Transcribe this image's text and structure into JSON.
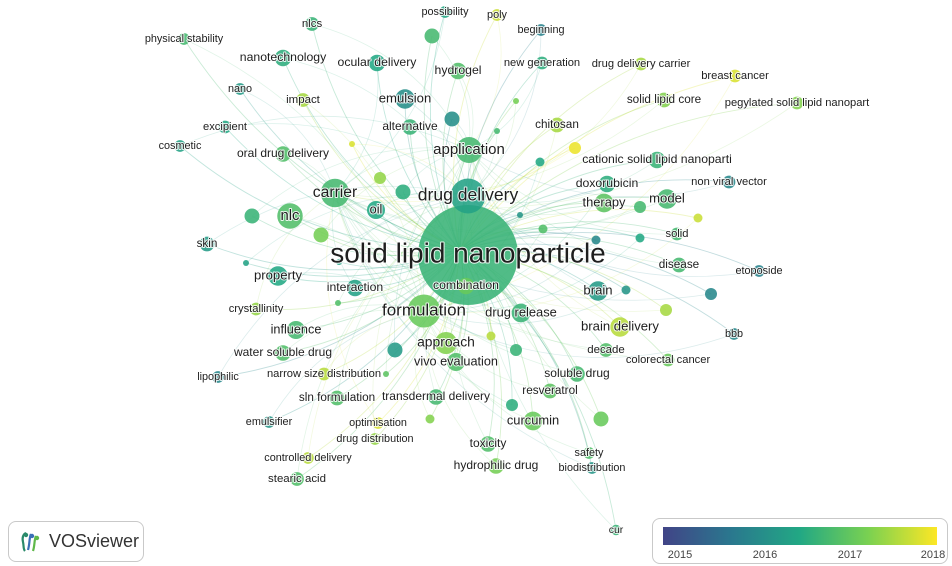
{
  "colors": {
    "scale": [
      "#414487",
      "#2a788e",
      "#22a884",
      "#7ad151",
      "#fde725"
    ],
    "link": "#8fcfc0"
  },
  "logo": {
    "text": "VOSviewer",
    "icon": "vosviewer-logo-icon"
  },
  "legend": {
    "ticks": [
      "2015",
      "2016",
      "2017",
      "2018"
    ]
  },
  "terms": [
    {
      "label": "solid lipid nanoparticle",
      "weight": 100,
      "year": 2016.7
    },
    {
      "label": "drug delivery",
      "weight": 45,
      "year": 2016.4
    },
    {
      "label": "formulation",
      "weight": 40,
      "year": 2017.1
    },
    {
      "label": "carrier",
      "weight": 30,
      "year": 2016.8
    },
    {
      "label": "application",
      "weight": 25,
      "year": 2016.8
    },
    {
      "label": "nlc",
      "weight": 24,
      "year": 2016.9
    },
    {
      "label": "approach",
      "weight": 18,
      "year": 2017.3
    },
    {
      "label": "brain",
      "weight": 14,
      "year": 2016.3
    },
    {
      "label": "emulsion",
      "weight": 14,
      "year": 2016.1
    },
    {
      "label": "property",
      "weight": 14,
      "year": 2016.5
    },
    {
      "label": "model",
      "weight": 14,
      "year": 2016.8
    },
    {
      "label": "brain delivery",
      "weight": 14,
      "year": 2017.6
    },
    {
      "label": "therapy",
      "weight": 13,
      "year": 2017.0
    },
    {
      "label": "curcumin",
      "weight": 13,
      "year": 2017.1
    },
    {
      "label": "drug release",
      "weight": 13,
      "year": 2016.7
    },
    {
      "label": "vivo evaluation",
      "weight": 12,
      "year": 2016.9
    },
    {
      "label": "oil",
      "weight": 12,
      "year": 2016.5
    },
    {
      "label": "influence",
      "weight": 12,
      "year": 2016.8
    },
    {
      "label": "interaction",
      "weight": 10,
      "year": 2016.4
    },
    {
      "label": "combination",
      "weight": 10,
      "year": 2017.1
    },
    {
      "label": "cationic solid lipid nanoparti",
      "weight": 10,
      "year": 2016.7
    },
    {
      "label": "doxorubicin",
      "weight": 10,
      "year": 2016.6
    },
    {
      "label": "ocular delivery",
      "weight": 10,
      "year": 2016.5
    },
    {
      "label": "hydrogel",
      "weight": 10,
      "year": 2016.9
    },
    {
      "label": "nanotechnology",
      "weight": 10,
      "year": 2016.6
    },
    {
      "label": "water soluble drug",
      "weight": 9,
      "year": 2016.9
    },
    {
      "label": "soluble drug",
      "weight": 9,
      "year": 2016.8
    },
    {
      "label": "transdermal delivery",
      "weight": 9,
      "year": 2016.8
    },
    {
      "label": "toxicity",
      "weight": 9,
      "year": 2016.9
    },
    {
      "label": "hydrophilic drug",
      "weight": 9,
      "year": 2017.2
    },
    {
      "label": "oral drug delivery",
      "weight": 9,
      "year": 2016.9
    },
    {
      "label": "alternative",
      "weight": 9,
      "year": 2016.7
    },
    {
      "label": "sln formulation",
      "weight": 8,
      "year": 2016.9
    },
    {
      "label": "resveratrol",
      "weight": 8,
      "year": 2017.0
    },
    {
      "label": "solid lipid core",
      "weight": 8,
      "year": 2017.3
    },
    {
      "label": "disease",
      "weight": 8,
      "year": 2016.8
    },
    {
      "label": "skin",
      "weight": 8,
      "year": 2016.3
    },
    {
      "label": "chitosan",
      "weight": 8,
      "year": 2017.5
    },
    {
      "label": "decade",
      "weight": 7,
      "year": 2016.9
    },
    {
      "label": "nlcs",
      "weight": 7,
      "year": 2016.7
    },
    {
      "label": "stearic acid",
      "weight": 7,
      "year": 2016.9
    },
    {
      "label": "impact",
      "weight": 7,
      "year": 2017.5
    },
    {
      "label": "colorectal cancer",
      "weight": 6,
      "year": 2017.1
    },
    {
      "label": "solid",
      "weight": 6,
      "year": 2016.8
    },
    {
      "label": "excipient",
      "weight": 6,
      "year": 2016.5
    },
    {
      "label": "narrow size distribution",
      "weight": 6,
      "year": 2017.6
    },
    {
      "label": "crystallinity",
      "weight": 6,
      "year": 2017.4
    },
    {
      "label": "new generation",
      "weight": 6,
      "year": 2016.6
    },
    {
      "label": "drug delivery carrier",
      "weight": 6,
      "year": 2017.5
    },
    {
      "label": "breast cancer",
      "weight": 6,
      "year": 2017.8
    },
    {
      "label": "pegylated solid lipid nanopart",
      "weight": 6,
      "year": 2017.3
    },
    {
      "label": "non viral vector",
      "weight": 6,
      "year": 2016.0
    },
    {
      "label": "etoposide",
      "weight": 5,
      "year": 2015.9
    },
    {
      "label": "bbb",
      "weight": 5,
      "year": 2016.0
    },
    {
      "label": "possibility",
      "weight": 5,
      "year": 2016.5
    },
    {
      "label": "poly",
      "weight": 5,
      "year": 2017.7
    },
    {
      "label": "beginning",
      "weight": 5,
      "year": 2015.9
    },
    {
      "label": "physical stability",
      "weight": 5,
      "year": 2016.8
    },
    {
      "label": "nano",
      "weight": 5,
      "year": 2016.3
    },
    {
      "label": "cosmetic",
      "weight": 5,
      "year": 2016.4
    },
    {
      "label": "lipophilic",
      "weight": 5,
      "year": 2016.0
    },
    {
      "label": "emulsifier",
      "weight": 5,
      "year": 2016.2
    },
    {
      "label": "optimisation",
      "weight": 5,
      "year": 2017.8
    },
    {
      "label": "drug distribution",
      "weight": 5,
      "year": 2017.4
    },
    {
      "label": "controlled delivery",
      "weight": 5,
      "year": 2017.6
    },
    {
      "label": "safety",
      "weight": 5,
      "year": 2016.9
    },
    {
      "label": "biodistribution",
      "weight": 5,
      "year": 2016.2
    },
    {
      "label": "cur",
      "weight": 4,
      "year": 2016.7
    }
  ],
  "minor_nodes": [
    {
      "year": 2016.2
    },
    {
      "year": 2016.9
    },
    {
      "year": 2017.4
    },
    {
      "year": 2016.6
    },
    {
      "year": 2017.8
    },
    {
      "year": 2016.0
    },
    {
      "year": 2016.8
    },
    {
      "year": 2017.2
    },
    {
      "year": 2016.4
    },
    {
      "year": 2017.6
    },
    {
      "year": 2016.7
    },
    {
      "year": 2016.3
    },
    {
      "year": 2017.0
    },
    {
      "year": 2016.5
    },
    {
      "year": 2017.9
    },
    {
      "year": 2016.1
    },
    {
      "year": 2016.8
    },
    {
      "year": 2017.3
    },
    {
      "year": 2016.6
    },
    {
      "year": 2017.1
    },
    {
      "year": 2016.9
    },
    {
      "year": 2016.2
    },
    {
      "year": 2017.5
    },
    {
      "year": 2016.7
    },
    {
      "year": 2016.4
    },
    {
      "year": 2017.7
    },
    {
      "year": 2016.0
    },
    {
      "year": 2016.8
    },
    {
      "year": 2017.2
    },
    {
      "year": 2016.5
    }
  ]
}
